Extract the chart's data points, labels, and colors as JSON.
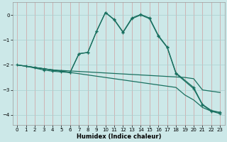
{
  "xlabel": "Humidex (Indice chaleur)",
  "background_color": "#cce8e8",
  "grid_color": "#aad0d0",
  "line_color": "#1a7060",
  "xlim": [
    -0.5,
    23.5
  ],
  "ylim": [
    -4.4,
    0.5
  ],
  "yticks": [
    0,
    -1,
    -2,
    -3,
    -4
  ],
  "xticks": [
    0,
    1,
    2,
    3,
    4,
    5,
    6,
    7,
    8,
    9,
    10,
    11,
    12,
    13,
    14,
    15,
    16,
    17,
    18,
    19,
    20,
    21,
    22,
    23
  ],
  "series": [
    {
      "x": [
        0,
        1,
        2,
        3,
        4,
        5,
        6,
        7,
        8,
        9,
        10,
        11,
        12,
        13,
        14,
        15,
        16,
        17,
        18,
        19,
        20,
        21,
        22,
        23
      ],
      "y": [
        -2.0,
        -2.05,
        -2.1,
        -2.15,
        -2.2,
        -2.25,
        -2.3,
        -2.35,
        -2.4,
        -2.45,
        -2.5,
        -2.55,
        -2.6,
        -2.65,
        -2.7,
        -2.75,
        -2.8,
        -2.85,
        -2.9,
        -3.2,
        -3.4,
        -3.7,
        -3.85,
        -3.9
      ],
      "markers": false
    },
    {
      "x": [
        0,
        2,
        3,
        4,
        5,
        6,
        7,
        8,
        9,
        10,
        11,
        12,
        13,
        14,
        15,
        16,
        17,
        18,
        19,
        20,
        21,
        22,
        23
      ],
      "y": [
        -2.0,
        -2.1,
        -2.15,
        -2.2,
        -2.22,
        -2.24,
        -2.26,
        -2.28,
        -2.3,
        -2.32,
        -2.34,
        -2.36,
        -2.38,
        -2.4,
        -2.42,
        -2.44,
        -2.46,
        -2.48,
        -2.5,
        -2.55,
        -3.0,
        -3.05,
        -3.1
      ],
      "markers": false
    },
    {
      "x": [
        0,
        2,
        3,
        4,
        5,
        6,
        7,
        8,
        9,
        10,
        11,
        12,
        13,
        14,
        15,
        16,
        17,
        18,
        20,
        21,
        22,
        23
      ],
      "y": [
        -2.0,
        -2.1,
        -2.15,
        -2.2,
        -2.25,
        -2.3,
        -1.55,
        -1.5,
        -0.65,
        0.1,
        -0.2,
        -0.7,
        -0.15,
        0.0,
        -0.15,
        -0.85,
        -1.3,
        -2.35,
        -2.95,
        -3.6,
        -3.85,
        -3.95
      ],
      "markers": true
    },
    {
      "x": [
        1,
        3,
        4,
        5,
        6,
        7,
        8,
        9,
        10,
        11,
        12,
        13,
        14,
        15,
        16,
        17,
        18,
        20,
        21,
        22,
        23
      ],
      "y": [
        -2.05,
        -2.2,
        -2.25,
        -2.28,
        -2.3,
        -1.55,
        -1.5,
        -0.65,
        0.1,
        -0.18,
        -0.68,
        -0.12,
        0.02,
        -0.12,
        -0.82,
        -1.28,
        -2.32,
        -2.9,
        -3.58,
        -3.82,
        -3.9
      ],
      "markers": true
    }
  ]
}
